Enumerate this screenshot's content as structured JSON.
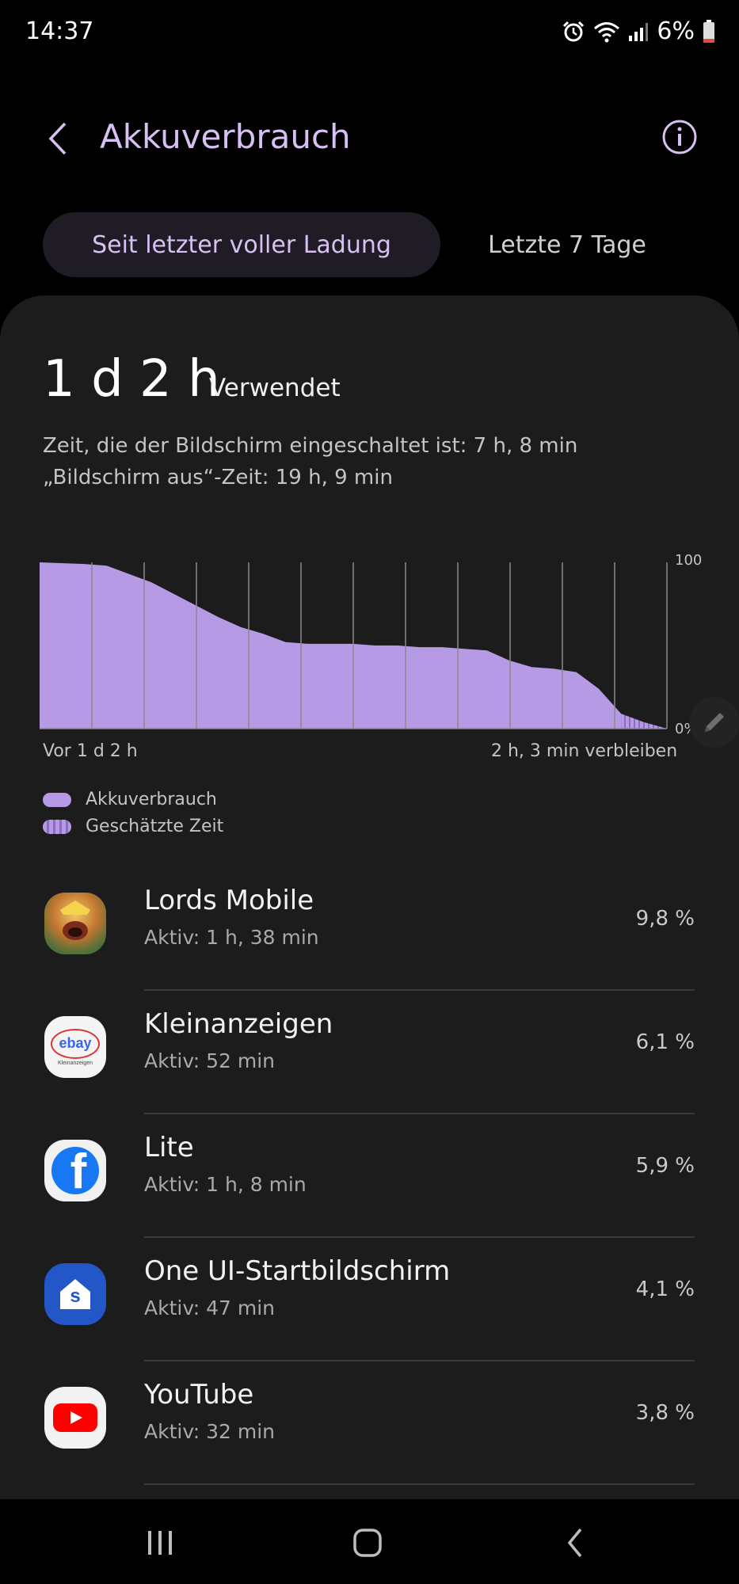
{
  "status_bar": {
    "time": "14:37",
    "battery_percent": "6%",
    "battery_level": 0.06,
    "icons": [
      "alarm-icon",
      "wifi-icon",
      "signal-icon",
      "battery-icon"
    ]
  },
  "header": {
    "title": "Akkuverbrauch",
    "back_icon": "back-chevron-icon",
    "info_icon": "info-icon"
  },
  "tabs": [
    {
      "label": "Seit letzter voller Ladung",
      "selected": true
    },
    {
      "label": "Letzte 7 Tage",
      "selected": false
    }
  ],
  "summary": {
    "used_value": "1 d 2 h",
    "used_label": "Verwendet",
    "screen_on": "Zeit, die der Bildschirm eingeschaltet ist: 7 h, 8 min",
    "screen_off": "„Bildschirm aus“-Zeit: 19 h, 9 min"
  },
  "chart_data": {
    "type": "area",
    "x_unit": "hours since last full charge",
    "x": [
      0,
      2,
      3,
      4,
      5,
      6,
      7,
      8,
      9,
      10,
      11,
      12,
      13,
      14,
      15,
      16,
      17,
      18,
      19,
      20,
      21,
      22,
      23,
      24,
      25,
      26
    ],
    "values": [
      100,
      99,
      98,
      93,
      88,
      81,
      74,
      67,
      61,
      57,
      52,
      51,
      51,
      51,
      50,
      50,
      49,
      49,
      48,
      47,
      41,
      37,
      36,
      34,
      24,
      9
    ],
    "estimated_x": [
      26,
      27,
      28.05
    ],
    "estimated_values": [
      9,
      4,
      0
    ],
    "ylim": [
      0,
      100
    ],
    "y_tick_top": "100",
    "y_tick_bottom": "0%",
    "x_start_label": "Vor 1 d 2 h",
    "x_end_label": "2 h, 3 min verbleiben",
    "grid": true,
    "color": "#b79ae6"
  },
  "legend": [
    {
      "label": "Akkuverbrauch",
      "style": "solid"
    },
    {
      "label": "Geschätzte Zeit",
      "style": "hatched"
    }
  ],
  "apps": [
    {
      "name": "Lords Mobile",
      "active": "Aktiv: 1 h, 38 min",
      "percent": "9,8 %",
      "icon": "lords-mobile-icon"
    },
    {
      "name": "Kleinanzeigen",
      "active": "Aktiv: 52 min",
      "percent": "6,1 %",
      "icon": "kleinanzeigen-icon",
      "icon_text": "ebay",
      "icon_subtext": "Kleinanzeigen"
    },
    {
      "name": "Lite",
      "active": "Aktiv: 1 h, 8 min",
      "percent": "5,9 %",
      "icon": "facebook-lite-icon",
      "icon_text": "f"
    },
    {
      "name": "One UI-Startbildschirm",
      "active": "Aktiv: 47 min",
      "percent": "4,1 %",
      "icon": "one-ui-home-icon",
      "icon_text": "s"
    },
    {
      "name": "YouTube",
      "active": "Aktiv: 32 min",
      "percent": "3,8 %",
      "icon": "youtube-icon"
    }
  ],
  "navbar": {
    "recents_icon": "recents-icon",
    "home_icon": "home-icon",
    "back_icon": "nav-back-icon"
  },
  "colors": {
    "accent": "#d7c0f2",
    "chart_fill": "#b79ae6",
    "card_bg": "#1c1c1c",
    "background": "#000000"
  }
}
